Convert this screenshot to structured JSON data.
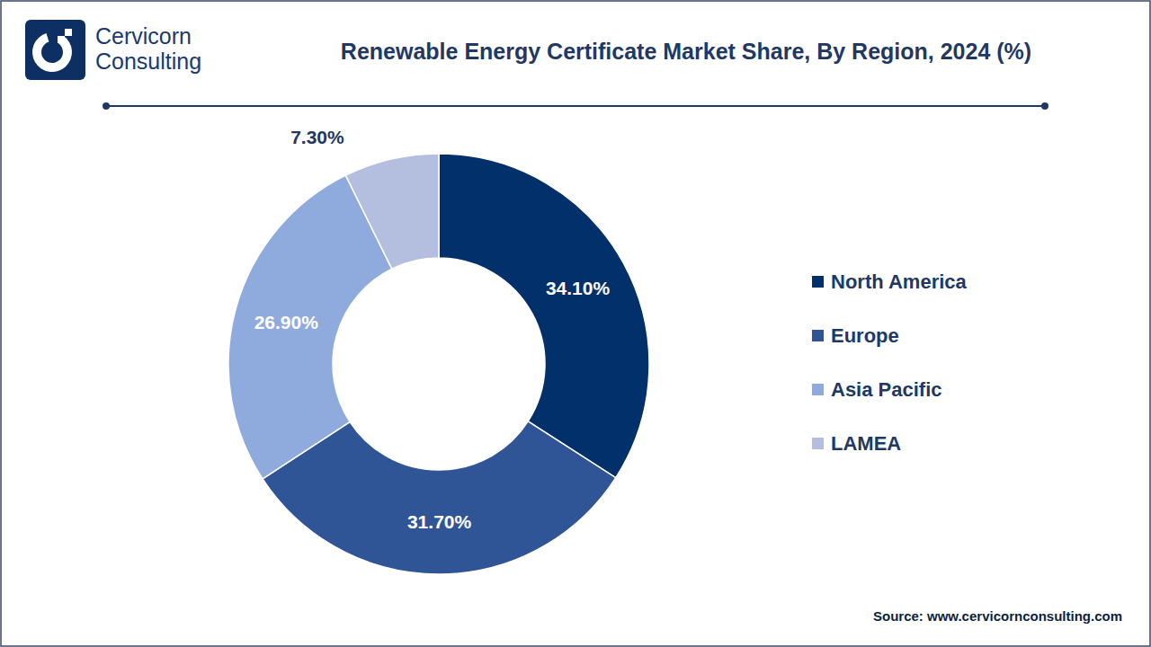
{
  "chart_data": {
    "type": "donut",
    "title": "Renewable Energy Certificate Market Share, By Region, 2024 (%)",
    "logo": [
      "Cervicorn",
      "Consulting"
    ],
    "source": "Source: www.cervicornconsulting.com",
    "categories": [
      "North America",
      "Europe",
      "Asia Pacific",
      "LAMEA"
    ],
    "values": [
      34.1,
      31.7,
      26.9,
      7.3
    ],
    "value_labels": [
      "34.10%",
      "31.70%",
      "26.90%",
      "7.30%"
    ],
    "colors": [
      "#02306a",
      "#2f5597",
      "#8faadc",
      "#b4bfdf"
    ],
    "data_labels": true,
    "legend": "right"
  }
}
